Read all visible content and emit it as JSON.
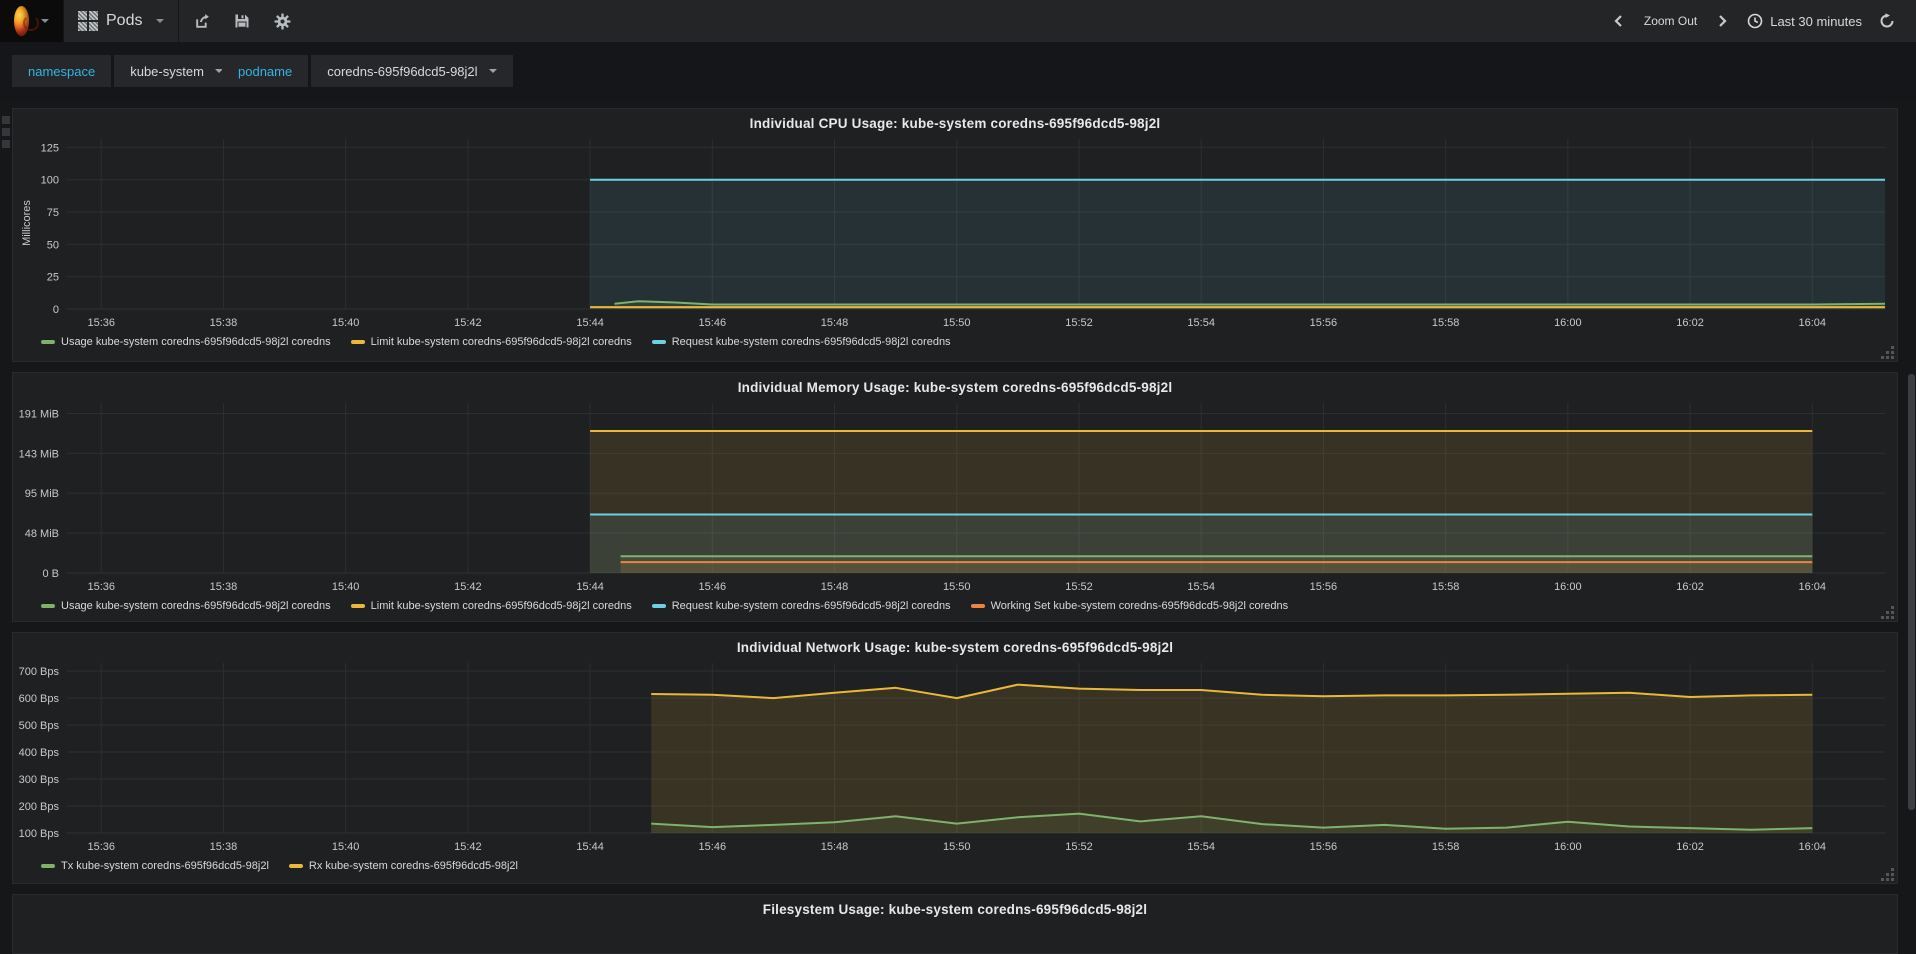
{
  "navbar": {
    "dashboard_title": "Pods",
    "zoom_out_label": "Zoom Out",
    "time_range_label": "Last 30 minutes"
  },
  "variables": {
    "namespace_label": "namespace",
    "namespace_value": "kube-system",
    "podname_label": "podname",
    "podname_value": "coredns-695f96dcd5-98j2l"
  },
  "colors": {
    "green": "#7eb26d",
    "yellow": "#eab839",
    "cyan": "#6ed0e0",
    "orange": "#ef843c",
    "variable_label": "#33b5e5",
    "panel_bg": "#1f2022",
    "grid": "#2c2f32"
  },
  "filesystem_panel": {
    "title": "Filesystem Usage: kube-system coredns-695f96dcd5-98j2l"
  },
  "chart_data": [
    {
      "type": "line",
      "title": "Individual CPU Usage: kube-system coredns-695f96dcd5-98j2l",
      "ylabel": "Millicores",
      "ylim": [
        0,
        131.5
      ],
      "xlim_minutes": [
        35.44,
        65.19
      ],
      "y_ticks": [
        {
          "v": 0,
          "label": "0"
        },
        {
          "v": 25,
          "label": "25"
        },
        {
          "v": 50,
          "label": "50"
        },
        {
          "v": 75,
          "label": "75"
        },
        {
          "v": 100,
          "label": "100"
        },
        {
          "v": 125,
          "label": "125"
        }
      ],
      "x_ticks": [
        {
          "t": 36,
          "label": "15:36"
        },
        {
          "t": 38,
          "label": "15:38"
        },
        {
          "t": 40,
          "label": "15:40"
        },
        {
          "t": 42,
          "label": "15:42"
        },
        {
          "t": 44,
          "label": "15:44"
        },
        {
          "t": 46,
          "label": "15:46"
        },
        {
          "t": 48,
          "label": "15:48"
        },
        {
          "t": 50,
          "label": "15:50"
        },
        {
          "t": 52,
          "label": "15:52"
        },
        {
          "t": 54,
          "label": "15:54"
        },
        {
          "t": 56,
          "label": "15:56"
        },
        {
          "t": 58,
          "label": "15:58"
        },
        {
          "t": 60,
          "label": "16:00"
        },
        {
          "t": 62,
          "label": "16:02"
        },
        {
          "t": 64,
          "label": "16:04"
        }
      ],
      "series": [
        {
          "name": "Usage kube-system coredns-695f96dcd5-98j2l coredns",
          "color": "#7eb26d",
          "fill_opacity": 0.1,
          "points": [
            [
              44.4,
              4
            ],
            [
              44.8,
              6
            ],
            [
              45.4,
              5
            ],
            [
              46,
              3.5
            ],
            [
              48,
              3.5
            ],
            [
              50,
              3.5
            ],
            [
              52,
              3.5
            ],
            [
              54,
              3.5
            ],
            [
              56,
              3.5
            ],
            [
              58,
              3.5
            ],
            [
              60,
              3.5
            ],
            [
              62,
              3.5
            ],
            [
              64,
              3.5
            ],
            [
              65.19,
              4
            ]
          ]
        },
        {
          "name": "Limit kube-system coredns-695f96dcd5-98j2l coredns",
          "color": "#eab839",
          "fill_opacity": 0.1,
          "points": [
            [
              44,
              1.5
            ],
            [
              65.19,
              1.5
            ]
          ]
        },
        {
          "name": "Request kube-system coredns-695f96dcd5-98j2l coredns",
          "color": "#6ed0e0",
          "fill_opacity": 0.1,
          "points": [
            [
              44,
              100
            ],
            [
              65.19,
              100
            ]
          ]
        }
      ]
    },
    {
      "type": "line",
      "title": "Individual Memory Usage: kube-system coredns-695f96dcd5-98j2l",
      "ylabel": "",
      "ylim": [
        0,
        203.5
      ],
      "xlim_minutes": [
        35.44,
        65.19
      ],
      "y_ticks": [
        {
          "v": 0,
          "label": "0 B"
        },
        {
          "v": 47.75,
          "label": "48 MiB"
        },
        {
          "v": 95.5,
          "label": "95 MiB"
        },
        {
          "v": 143.25,
          "label": "143 MiB"
        },
        {
          "v": 191,
          "label": "191 MiB"
        }
      ],
      "x_ticks": [
        {
          "t": 36,
          "label": "15:36"
        },
        {
          "t": 38,
          "label": "15:38"
        },
        {
          "t": 40,
          "label": "15:40"
        },
        {
          "t": 42,
          "label": "15:42"
        },
        {
          "t": 44,
          "label": "15:44"
        },
        {
          "t": 46,
          "label": "15:46"
        },
        {
          "t": 48,
          "label": "15:48"
        },
        {
          "t": 50,
          "label": "15:50"
        },
        {
          "t": 52,
          "label": "15:52"
        },
        {
          "t": 54,
          "label": "15:54"
        },
        {
          "t": 56,
          "label": "15:56"
        },
        {
          "t": 58,
          "label": "15:58"
        },
        {
          "t": 60,
          "label": "16:00"
        },
        {
          "t": 62,
          "label": "16:02"
        },
        {
          "t": 64,
          "label": "16:04"
        }
      ],
      "series": [
        {
          "name": "Usage kube-system coredns-695f96dcd5-98j2l coredns",
          "color": "#7eb26d",
          "fill_opacity": 0.1,
          "points": [
            [
              44.5,
              20
            ],
            [
              64,
              20
            ]
          ]
        },
        {
          "name": "Limit kube-system coredns-695f96dcd5-98j2l coredns",
          "color": "#eab839",
          "fill_opacity": 0.12,
          "points": [
            [
              44,
              170
            ],
            [
              64,
              170
            ]
          ]
        },
        {
          "name": "Request kube-system coredns-695f96dcd5-98j2l coredns",
          "color": "#6ed0e0",
          "fill_opacity": 0.1,
          "points": [
            [
              44,
              70
            ],
            [
              64,
              70
            ]
          ]
        },
        {
          "name": "Working Set kube-system coredns-695f96dcd5-98j2l coredns",
          "color": "#ef843c",
          "fill_opacity": 0.1,
          "points": [
            [
              44.5,
              13
            ],
            [
              64,
              13
            ]
          ]
        }
      ]
    },
    {
      "type": "line",
      "title": "Individual Network Usage: kube-system coredns-695f96dcd5-98j2l",
      "ylabel": "",
      "ylim": [
        100,
        730
      ],
      "xlim_minutes": [
        35.44,
        65.19
      ],
      "y_ticks": [
        {
          "v": 100,
          "label": "100 Bps"
        },
        {
          "v": 200,
          "label": "200 Bps"
        },
        {
          "v": 300,
          "label": "300 Bps"
        },
        {
          "v": 400,
          "label": "400 Bps"
        },
        {
          "v": 500,
          "label": "500 Bps"
        },
        {
          "v": 600,
          "label": "600 Bps"
        },
        {
          "v": 700,
          "label": "700 Bps"
        }
      ],
      "x_ticks": [
        {
          "t": 36,
          "label": "15:36"
        },
        {
          "t": 38,
          "label": "15:38"
        },
        {
          "t": 40,
          "label": "15:40"
        },
        {
          "t": 42,
          "label": "15:42"
        },
        {
          "t": 44,
          "label": "15:44"
        },
        {
          "t": 46,
          "label": "15:46"
        },
        {
          "t": 48,
          "label": "15:48"
        },
        {
          "t": 50,
          "label": "15:50"
        },
        {
          "t": 52,
          "label": "15:52"
        },
        {
          "t": 54,
          "label": "15:54"
        },
        {
          "t": 56,
          "label": "15:56"
        },
        {
          "t": 58,
          "label": "15:58"
        },
        {
          "t": 60,
          "label": "16:00"
        },
        {
          "t": 62,
          "label": "16:02"
        },
        {
          "t": 64,
          "label": "16:04"
        }
      ],
      "series": [
        {
          "name": "Tx kube-system coredns-695f96dcd5-98j2l",
          "color": "#7eb26d",
          "fill_opacity": 0.1,
          "points": [
            [
              45,
              135
            ],
            [
              46,
              122
            ],
            [
              47,
              130
            ],
            [
              48,
              140
            ],
            [
              49,
              162
            ],
            [
              50,
              135
            ],
            [
              51,
              158
            ],
            [
              52,
              172
            ],
            [
              53,
              143
            ],
            [
              54,
              162
            ],
            [
              55,
              133
            ],
            [
              56,
              120
            ],
            [
              57,
              130
            ],
            [
              58,
              116
            ],
            [
              59,
              120
            ],
            [
              60,
              142
            ],
            [
              61,
              124
            ],
            [
              62,
              118
            ],
            [
              63,
              112
            ],
            [
              64,
              118
            ]
          ]
        },
        {
          "name": "Rx kube-system coredns-695f96dcd5-98j2l",
          "color": "#eab839",
          "fill_opacity": 0.13,
          "points": [
            [
              45,
              615
            ],
            [
              46,
              612
            ],
            [
              47,
              600
            ],
            [
              48,
              620
            ],
            [
              49,
              638
            ],
            [
              50,
              600
            ],
            [
              51,
              650
            ],
            [
              52,
              635
            ],
            [
              53,
              630
            ],
            [
              54,
              630
            ],
            [
              55,
              612
            ],
            [
              56,
              607
            ],
            [
              57,
              610
            ],
            [
              58,
              610
            ],
            [
              59,
              612
            ],
            [
              60,
              616
            ],
            [
              61,
              620
            ],
            [
              62,
              604
            ],
            [
              63,
              610
            ],
            [
              64,
              612
            ]
          ]
        }
      ]
    }
  ]
}
